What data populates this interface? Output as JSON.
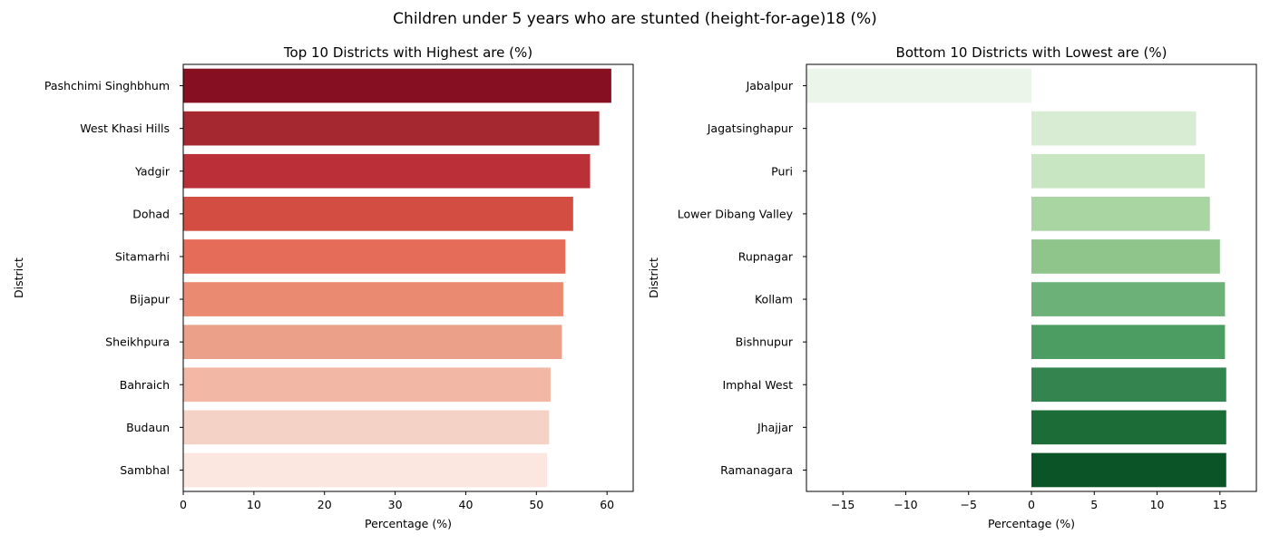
{
  "suptitle": "Children under 5 years who are stunted (height-for-age)18 (%)",
  "chart_data": [
    {
      "type": "bar",
      "orientation": "horizontal",
      "title": "Top 10 Districts with Highest are (%)",
      "xlabel": "Percentage (%)",
      "ylabel": "District",
      "xlim": [
        0,
        63.7
      ],
      "xticks": [
        0,
        10,
        20,
        30,
        40,
        50,
        60
      ],
      "xtick_labels": [
        "0",
        "10",
        "20",
        "30",
        "40",
        "50",
        "60"
      ],
      "categories": [
        "Pashchimi Singhbhum",
        "West Khasi Hills",
        "Yadgir",
        "Dohad",
        "Sitamarhi",
        "Bijapur",
        "Sheikhpura",
        "Bahraich",
        "Budaun",
        "Sambhal"
      ],
      "values": [
        60.6,
        58.9,
        57.6,
        55.2,
        54.1,
        53.8,
        53.6,
        52.0,
        51.8,
        51.5
      ],
      "colors": [
        "#860f22",
        "#a52830",
        "#bb3038",
        "#d44d43",
        "#e46c58",
        "#ea8a70",
        "#eba089",
        "#f2b7a5",
        "#f4d2c5",
        "#fbe7df"
      ]
    },
    {
      "type": "bar",
      "orientation": "horizontal",
      "title": "Bottom 10 Districts with Lowest are (%)",
      "xlabel": "Percentage (%)",
      "ylabel": "District",
      "xlim": [
        -17.9,
        17.9
      ],
      "xticks": [
        -15,
        -10,
        -5,
        0,
        5,
        10,
        15
      ],
      "xtick_labels": [
        "−15",
        "−10",
        "−5",
        "0",
        "5",
        "10",
        "15"
      ],
      "categories": [
        "Jabalpur",
        "Jagatsinghapur",
        "Puri",
        "Lower Dibang Valley",
        "Rupnagar",
        "Kollam",
        "Bishnupur",
        "Imphal West",
        "Jhajjar",
        "Ramanagara"
      ],
      "values": [
        -17.9,
        13.1,
        13.8,
        14.2,
        15.0,
        15.4,
        15.4,
        15.5,
        15.5,
        15.5
      ],
      "colors": [
        "#ebf5e9",
        "#d7ecd3",
        "#c7e6c1",
        "#a9d5a3",
        "#8fc58b",
        "#6cb177",
        "#4c9d61",
        "#34844f",
        "#1c6c38",
        "#0a5428"
      ]
    }
  ]
}
